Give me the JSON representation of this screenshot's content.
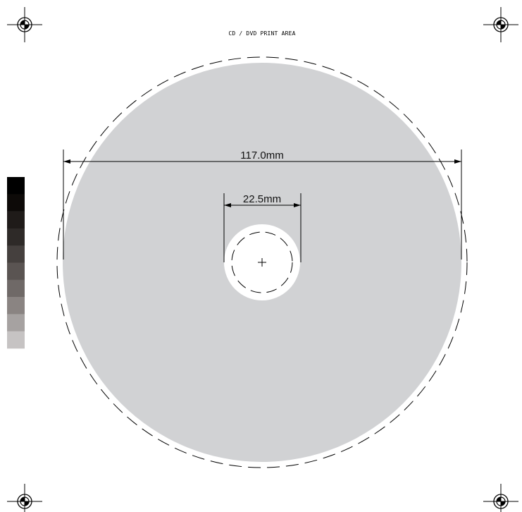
{
  "title": "CD / DVD PRINT AREA",
  "dimensions": {
    "outer_diameter": "117.0mm",
    "inner_diameter": "22.5mm"
  },
  "colors": {
    "disc_fill": "#d1d2d4",
    "hole_fill": "#ffffff",
    "line": "#000000",
    "background": "#ffffff"
  },
  "registration_marks": [
    "top-left",
    "top-right",
    "bottom-left",
    "bottom-right"
  ],
  "gray_scale": {
    "steps": [
      "#000000",
      "#0d0a08",
      "#1f1b19",
      "#2e2a28",
      "#45403e",
      "#5a5452",
      "#6f6967",
      "#8a8482",
      "#a6a2a1",
      "#c6c3c3"
    ]
  }
}
